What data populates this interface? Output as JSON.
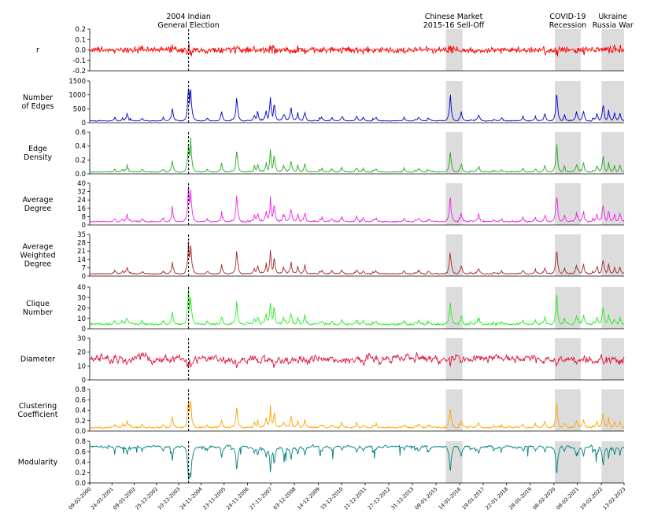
{
  "chart_data": {
    "type": "line",
    "annotations": [
      {
        "label_lines": [
          "2004 Indian",
          "General Election"
        ],
        "kind": "dashed-line",
        "at": "13-05-2004"
      },
      {
        "label_lines": [
          "Chinese Market",
          "2015-16 Sell-Off"
        ],
        "kind": "shaded-span",
        "from": "12-06-2015",
        "to": "29-02-2016"
      },
      {
        "label_lines": [
          "COVID-19",
          "Recession"
        ],
        "kind": "shaded-span",
        "from": "20-02-2020",
        "to": "01-04-2021"
      },
      {
        "label_lines": [
          "Ukraine",
          "Russia War"
        ],
        "kind": "shaded-span",
        "from": "24-02-2022",
        "to": "13-02-2023"
      }
    ],
    "x_range": [
      "09-02-2000",
      "13-02-2023"
    ],
    "x_ticks": [
      "09-02-2000",
      "24-01-2001",
      "09-01-2002",
      "25-12-2002",
      "10-12-2003",
      "24-11-2004",
      "23-11-2005",
      "24-11-2006",
      "27-11-2007",
      "03-12-2008",
      "14-12-2009",
      "15-12-2010",
      "21-12-2011",
      "27-12-2012",
      "31-12-2013",
      "08-01-2015",
      "14-01-2016",
      "19-01-2017",
      "22-01-2018",
      "28-01-2019",
      "06-02-2020",
      "08-02-2021",
      "19-02-2022",
      "13-02-2023"
    ],
    "panels": [
      {
        "ylabel_lines": [
          "r"
        ],
        "color": "#ff0000",
        "ylim": [
          -0.2,
          0.2
        ],
        "yticks": [
          "-0.2",
          "-0.1",
          "0.0",
          "0.1",
          "0.2"
        ],
        "base": 0.0,
        "noise": 0.025,
        "style": "symmetric"
      },
      {
        "ylabel_lines": [
          "Number",
          "of Edges"
        ],
        "color": "#0000cc",
        "ylim": [
          0,
          1500
        ],
        "yticks": [
          "0",
          "500",
          "1000",
          "1500"
        ],
        "base": 60,
        "noise": 25,
        "style": "spiky",
        "spike_scale": 1440
      },
      {
        "ylabel_lines": [
          "Edge",
          "Density"
        ],
        "color": "#22aa22",
        "ylim": [
          0,
          0.6
        ],
        "yticks": [
          "0.0",
          "0.2",
          "0.4",
          "0.6"
        ],
        "base": 0.025,
        "noise": 0.01,
        "style": "spiky",
        "spike_scale": 0.5
      },
      {
        "ylabel_lines": [
          "Average",
          "Degree"
        ],
        "color": "#ee22ee",
        "ylim": [
          0,
          40
        ],
        "yticks": [
          "0",
          "8",
          "16",
          "24",
          "32",
          "40"
        ],
        "base": 3,
        "noise": 1,
        "style": "spiky",
        "spike_scale": 38
      },
      {
        "ylabel_lines": [
          "Average",
          "Weighted",
          "Degree"
        ],
        "color": "#a52a2a",
        "ylim": [
          0,
          35
        ],
        "yticks": [
          "0",
          "7",
          "14",
          "21",
          "28",
          "35"
        ],
        "base": 1.8,
        "noise": 0.6,
        "style": "spiky",
        "spike_scale": 30
      },
      {
        "ylabel_lines": [
          "Clique",
          "Number"
        ],
        "color": "#22ee22",
        "ylim": [
          0,
          40
        ],
        "yticks": [
          "0",
          "10",
          "20",
          "30",
          "40"
        ],
        "base": 4,
        "noise": 1.5,
        "style": "spiky",
        "spike_scale": 36
      },
      {
        "ylabel_lines": [
          "Diameter"
        ],
        "color": "#dc143c",
        "ylim": [
          0,
          30
        ],
        "yticks": [
          "0",
          "10",
          "20",
          "30"
        ],
        "base": 15,
        "noise": 3,
        "style": "wandering"
      },
      {
        "ylabel_lines": [
          "Clustering",
          "Coefficient"
        ],
        "color": "#ffa500",
        "ylim": [
          0,
          0.8
        ],
        "yticks": [
          "0.0",
          "0.2",
          "0.4",
          "0.6",
          "0.8"
        ],
        "base": 0.06,
        "noise": 0.03,
        "style": "spiky",
        "spike_scale": 0.65
      },
      {
        "ylabel_lines": [
          "Modularity"
        ],
        "color": "#008080",
        "ylim": [
          0,
          0.8
        ],
        "yticks": [
          "0.0",
          "0.2",
          "0.4",
          "0.6",
          "0.8"
        ],
        "base": 0.7,
        "noise": 0.04,
        "style": "dips",
        "spike_scale": 0.6
      }
    ],
    "spike_events": [
      {
        "at": "01-09-2003",
        "height": 0.35
      },
      {
        "at": "13-05-2004",
        "height": 1.0
      },
      {
        "at": "15-06-2004",
        "height": 0.9
      },
      {
        "at": "10-03-2001",
        "height": 0.1
      },
      {
        "at": "10-07-2001",
        "height": 0.08
      },
      {
        "at": "20-09-2001",
        "height": 0.18
      },
      {
        "at": "15-05-2002",
        "height": 0.08
      },
      {
        "at": "10-04-2003",
        "height": 0.1
      },
      {
        "at": "05-03-2005",
        "height": 0.08
      },
      {
        "at": "15-10-2005",
        "height": 0.22
      },
      {
        "at": "10-06-2006",
        "height": 0.68
      },
      {
        "at": "15-03-2007",
        "height": 0.18
      },
      {
        "at": "05-05-2007",
        "height": 0.25
      },
      {
        "at": "15-09-2007",
        "height": 0.3
      },
      {
        "at": "22-11-2007",
        "height": 0.62
      },
      {
        "at": "20-01-2008",
        "height": 0.5
      },
      {
        "at": "15-06-2008",
        "height": 0.22
      },
      {
        "at": "10-10-2008",
        "height": 0.38
      },
      {
        "at": "25-01-2009",
        "height": 0.2
      },
      {
        "at": "15-05-2009",
        "height": 0.25
      },
      {
        "at": "10-02-2010",
        "height": 0.08
      },
      {
        "at": "15-07-2010",
        "height": 0.1
      },
      {
        "at": "20-12-2010",
        "height": 0.14
      },
      {
        "at": "10-08-2011",
        "height": 0.15
      },
      {
        "at": "20-11-2011",
        "height": 0.1
      },
      {
        "at": "10-06-2012",
        "height": 0.08
      },
      {
        "at": "25-08-2013",
        "height": 0.1
      },
      {
        "at": "15-04-2014",
        "height": 0.08
      },
      {
        "at": "20-08-2015",
        "height": 0.72
      },
      {
        "at": "10-02-2016",
        "height": 0.25
      },
      {
        "at": "10-11-2016",
        "height": 0.18
      },
      {
        "at": "05-11-2017",
        "height": 0.08
      },
      {
        "at": "05-10-2018",
        "height": 0.12
      },
      {
        "at": "20-04-2019",
        "height": 0.12
      },
      {
        "at": "15-09-2019",
        "height": 0.2
      },
      {
        "at": "20-03-2020",
        "height": 0.8
      },
      {
        "at": "20-07-2020",
        "height": 0.18
      },
      {
        "at": "25-01-2021",
        "height": 0.25
      },
      {
        "at": "15-05-2021",
        "height": 0.28
      },
      {
        "at": "15-12-2021",
        "height": 0.2
      },
      {
        "at": "20-03-2022",
        "height": 0.52
      },
      {
        "at": "15-06-2022",
        "height": 0.28
      },
      {
        "at": "15-09-2022",
        "height": 0.2
      },
      {
        "at": "10-12-2022",
        "height": 0.22
      }
    ],
    "colors": {
      "shade": "#dcdcdc",
      "axis": "#000000"
    }
  }
}
